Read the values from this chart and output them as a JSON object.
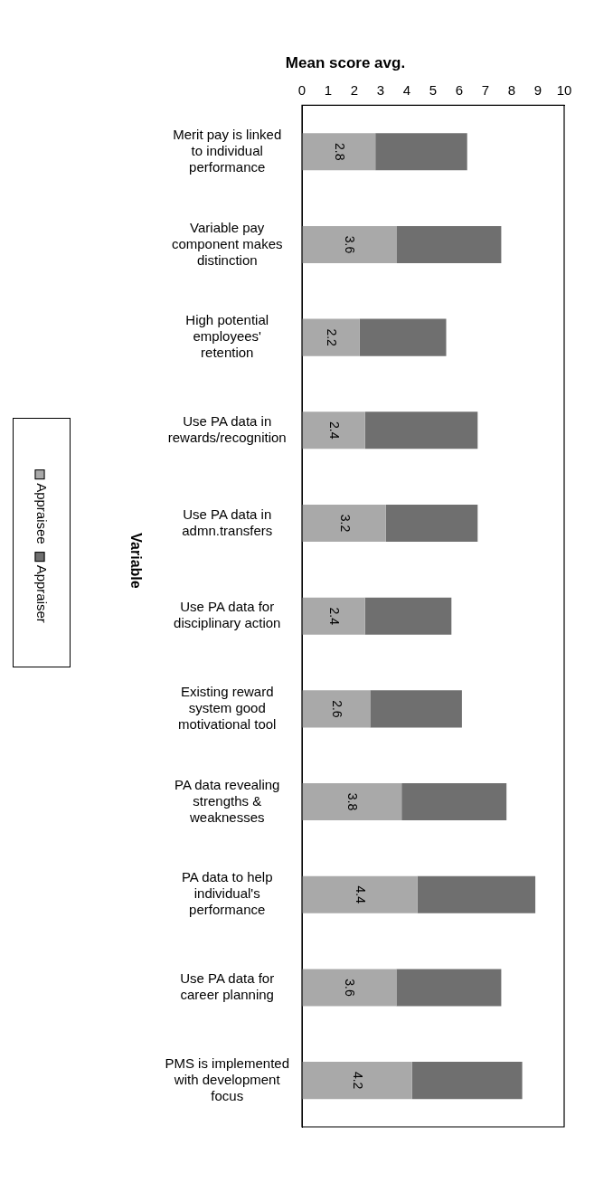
{
  "chart_data": {
    "type": "bar",
    "orientation": "horizontal",
    "stacked": true,
    "title": "Mean score avg.",
    "ylabel": "Variable",
    "categories": [
      "Merit pay is linked to individual performance",
      "Variable pay component makes distinction",
      "High potential employees' retention",
      "Use PA data in rewards/recognition",
      "Use PA data in admn.transfers",
      "Use PA data for disciplinary action",
      "Existing reward system good motivational tool",
      "PA data revealing strengths & weaknesses",
      "PA data to help individual's performance",
      "Use PA data for career planning",
      "PMS is implemented with development focus"
    ],
    "series": [
      {
        "name": "Appraisee",
        "color": "#a9a9a9",
        "values": [
          2.8,
          3.6,
          2.2,
          2.4,
          3.2,
          2.4,
          2.6,
          3.8,
          4.4,
          3.6,
          4.2
        ],
        "value_labels": [
          "2.8",
          "3.6",
          "2.2",
          "2.4",
          "3.2",
          "2.4",
          "2.6",
          "3.8",
          "4.4",
          "3.6",
          "4.2"
        ]
      },
      {
        "name": "Appraiser",
        "color": "#6f6f6f",
        "values": [
          3.5,
          4.0,
          3.3,
          4.3,
          3.5,
          3.3,
          3.5,
          4.0,
          4.5,
          4.0,
          4.2
        ]
      }
    ],
    "xlim": [
      0,
      10
    ],
    "xticks": [
      0,
      1,
      2,
      3,
      4,
      5,
      6,
      7,
      8,
      9,
      10
    ],
    "grid": false,
    "legend": "left"
  }
}
